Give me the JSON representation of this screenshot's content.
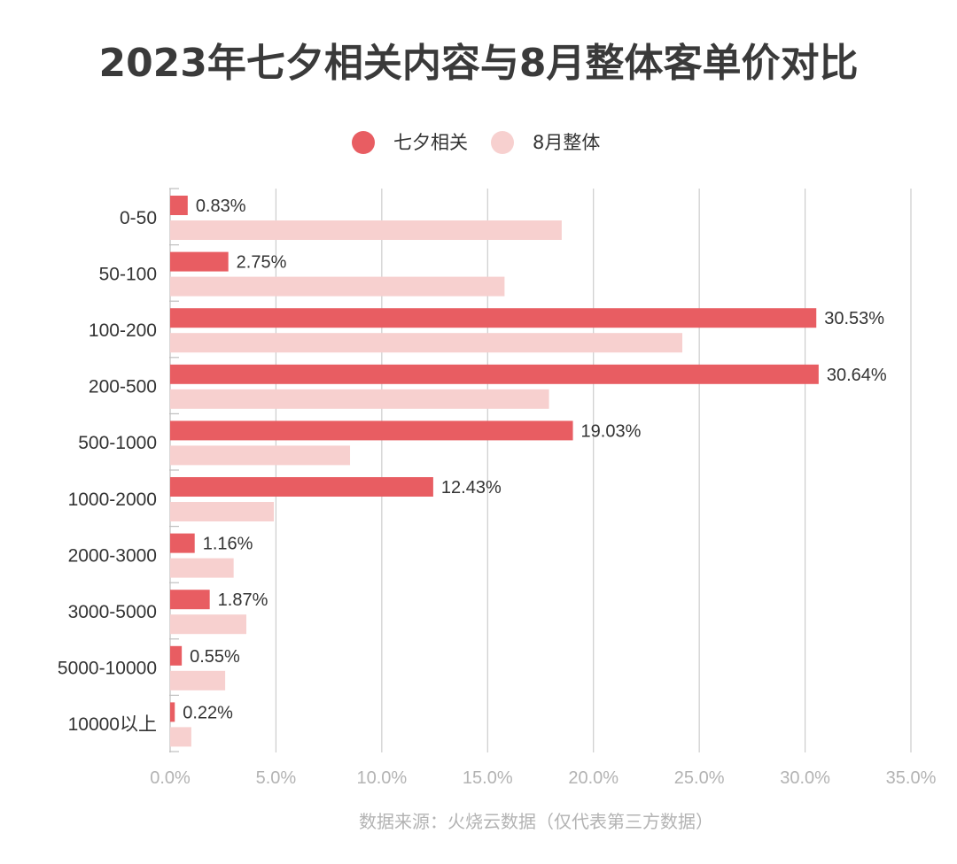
{
  "chart_data": {
    "type": "bar",
    "orientation": "horizontal",
    "title": "2023年七夕相关内容与8月整体客单价对比",
    "categories": [
      "0-50",
      "50-100",
      "100-200",
      "200-500",
      "500-1000",
      "1000-2000",
      "2000-3000",
      "3000-5000",
      "5000-10000",
      "10000以上"
    ],
    "series": [
      {
        "name": "七夕相关",
        "color": "#e85d62",
        "values": [
          0.83,
          2.75,
          30.53,
          30.64,
          19.03,
          12.43,
          1.16,
          1.87,
          0.55,
          0.22
        ],
        "data_labels": [
          "0.83%",
          "2.75%",
          "30.53%",
          "30.64%",
          "19.03%",
          "12.43%",
          "1.16%",
          "1.87%",
          "0.55%",
          "0.22%"
        ]
      },
      {
        "name": "8月整体",
        "color": "#f7d0cf",
        "values": [
          18.5,
          15.8,
          24.2,
          17.9,
          8.5,
          4.9,
          3.0,
          3.6,
          2.6,
          1.0
        ]
      }
    ],
    "xlim": [
      0,
      35
    ],
    "xticks": [
      0,
      5,
      10,
      15,
      20,
      25,
      30,
      35
    ],
    "xtick_labels": [
      "0.0%",
      "5.0%",
      "10.0%",
      "15.0%",
      "20.0%",
      "25.0%",
      "30.0%",
      "35.0%"
    ],
    "grid": true,
    "legend": "top-center",
    "xlabel": "",
    "ylabel": "",
    "source": "数据来源：火烧云数据（仅代表第三方数据）",
    "gridline_color": "#cccccc",
    "axis_color": "#bfbfbf"
  }
}
